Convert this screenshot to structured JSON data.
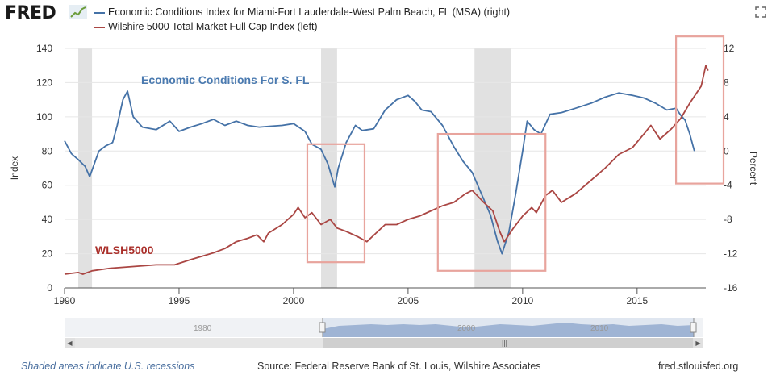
{
  "header": {
    "logo": "FRED",
    "legend": [
      {
        "label": "Economic Conditions Index for Miami-Fort Lauderdale-West Palm Beach, FL (MSA) (right)",
        "color": "#4572a7"
      },
      {
        "label": "Wilshire 5000 Total Market Full Cap Index (left)",
        "color": "#aa4643"
      }
    ],
    "expand_icon": "fullscreen-icon"
  },
  "footer": {
    "recession_note": "Shaded areas indicate U.S. recessions",
    "source": "Source: Federal Reserve Bank of St. Louis, Wilshire Associates",
    "site": "fred.stlouisfed.org"
  },
  "navigator": {
    "labels": [
      "1980",
      "2000",
      "2010"
    ],
    "handle_icon": "range-handle-icon",
    "scroll_grip": "|||"
  },
  "chart_data": {
    "type": "line",
    "xlim": [
      1990,
      2018
    ],
    "xticks": [
      1990,
      1995,
      2000,
      2005,
      2010,
      2015
    ],
    "left_axis": {
      "label": "Index",
      "ylim": [
        0,
        140
      ],
      "ticks": [
        0,
        20,
        40,
        60,
        80,
        100,
        120,
        140
      ]
    },
    "right_axis": {
      "label": "Percent",
      "ylim": [
        -16,
        12
      ],
      "ticks": [
        -16,
        -12,
        -8,
        -4,
        0,
        4,
        8,
        12
      ]
    },
    "grid": true,
    "recessions": [
      [
        1990.6,
        1991.2
      ],
      [
        2001.2,
        2001.9
      ],
      [
        2007.9,
        2009.5
      ]
    ],
    "annotations": [
      {
        "text": "Economic Conditions For S. FL",
        "color": "#4a7ab0"
      },
      {
        "text": "WLSH5000",
        "color": "#aa2f2a"
      }
    ],
    "highlight_boxes": [
      {
        "x": [
          2000.6,
          2003.1
        ],
        "y_left": [
          15,
          84
        ]
      },
      {
        "x": [
          2006.3,
          2011.0
        ],
        "y_left": [
          10,
          90
        ]
      },
      {
        "x": [
          2016.7,
          2018.9
        ],
        "y_left": [
          61,
          147
        ]
      }
    ],
    "series": [
      {
        "name": "Economic Conditions Index for Miami-Fort Lauderdale-West Palm Beach, FL (MSA) (right)",
        "axis": "right",
        "color": "#4572a7",
        "x": [
          1990.0,
          1990.3,
          1990.6,
          1990.9,
          1991.1,
          1991.5,
          1991.8,
          1992.1,
          1992.3,
          1992.55,
          1992.75,
          1993.0,
          1993.4,
          1994.0,
          1994.6,
          1995.0,
          1995.5,
          1996.0,
          1996.5,
          1997.0,
          1997.5,
          1998.0,
          1998.5,
          1999.0,
          1999.5,
          2000.0,
          2000.5,
          2000.8,
          2001.2,
          2001.5,
          2001.8,
          2001.95,
          2002.3,
          2002.7,
          2003.0,
          2003.5,
          2004.0,
          2004.5,
          2005.0,
          2005.3,
          2005.6,
          2006.0,
          2006.5,
          2007.0,
          2007.4,
          2007.8,
          2008.2,
          2008.6,
          2008.9,
          2009.1,
          2009.4,
          2009.7,
          2010.0,
          2010.2,
          2010.5,
          2010.8,
          2011.2,
          2011.7,
          2012.3,
          2013.0,
          2013.6,
          2014.2,
          2014.8,
          2015.3,
          2015.8,
          2016.3,
          2016.7,
          2016.9,
          2017.1,
          2017.3,
          2017.5
        ],
        "y": [
          1.2,
          -0.3,
          -1.0,
          -1.8,
          -3.0,
          0.0,
          0.6,
          1.0,
          3.0,
          6.0,
          7.0,
          4.0,
          2.8,
          2.5,
          3.5,
          2.3,
          2.8,
          3.2,
          3.7,
          3.0,
          3.5,
          3.0,
          2.8,
          2.9,
          3.0,
          3.2,
          2.3,
          0.8,
          0.2,
          -1.5,
          -4.2,
          -2.0,
          1.0,
          3.0,
          2.4,
          2.6,
          4.8,
          6.0,
          6.5,
          5.8,
          4.8,
          4.6,
          3.0,
          0.5,
          -1.2,
          -2.5,
          -5.0,
          -7.5,
          -10.5,
          -12.0,
          -9.5,
          -5.0,
          0.0,
          3.5,
          2.5,
          2.0,
          4.3,
          4.5,
          5.0,
          5.6,
          6.3,
          6.8,
          6.5,
          6.2,
          5.6,
          4.8,
          5.0,
          4.2,
          3.6,
          2.0,
          0.0
        ]
      },
      {
        "name": "Wilshire 5000 Total Market Full Cap Index (left)",
        "axis": "left",
        "color": "#aa4643",
        "x": [
          1990.0,
          1990.6,
          1990.8,
          1991.2,
          1992.0,
          1993.0,
          1994.0,
          1994.8,
          1995.5,
          1996.0,
          1996.5,
          1997.0,
          1997.5,
          1998.0,
          1998.4,
          1998.7,
          1998.9,
          1999.5,
          2000.0,
          2000.2,
          2000.5,
          2000.8,
          2001.2,
          2001.6,
          2001.9,
          2002.3,
          2002.8,
          2003.2,
          2003.6,
          2004.0,
          2004.5,
          2005.0,
          2005.5,
          2006.0,
          2006.5,
          2007.0,
          2007.5,
          2007.8,
          2008.3,
          2008.7,
          2009.0,
          2009.2,
          2009.6,
          2010.0,
          2010.4,
          2010.6,
          2011.0,
          2011.3,
          2011.7,
          2012.3,
          2013.0,
          2013.6,
          2014.2,
          2014.8,
          2015.3,
          2015.6,
          2016.0,
          2016.5,
          2016.9,
          2017.3,
          2017.8,
          2018.0,
          2018.1
        ],
        "y": [
          8.0,
          9.0,
          8.0,
          10.0,
          11.5,
          12.5,
          13.5,
          13.5,
          16.5,
          18.5,
          20.5,
          23.0,
          27.0,
          29.0,
          31.0,
          27.0,
          32.0,
          37.0,
          43.0,
          47.0,
          41.0,
          44.0,
          37.0,
          40.0,
          35.0,
          33.0,
          30.0,
          27.0,
          32.0,
          37.0,
          37.0,
          40.0,
          42.0,
          45.0,
          48.0,
          50.0,
          55.0,
          57.0,
          50.0,
          45.0,
          33.0,
          27.0,
          35.0,
          42.0,
          47.0,
          44.0,
          54.0,
          57.0,
          50.0,
          55.0,
          63.0,
          70.0,
          78.0,
          82.0,
          90.0,
          95.0,
          87.0,
          93.0,
          99.0,
          108.0,
          118.0,
          130.0,
          127.0
        ]
      }
    ]
  }
}
